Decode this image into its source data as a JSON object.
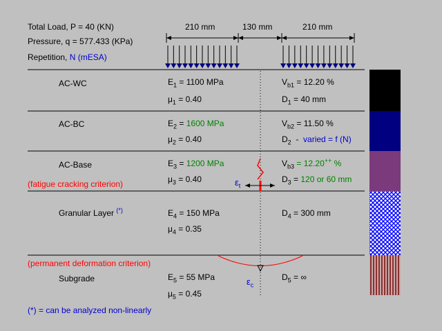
{
  "header": {
    "total_load": "Total Load, P = 40 (KN)",
    "pressure": "Pressure, q = 577.433 (KPa)",
    "repetition_prefix": "Repetition, ",
    "repetition_value": "N (mESA)"
  },
  "dimensions": {
    "left_width": "210 mm",
    "gap": "130 mm",
    "right_width": "210 mm"
  },
  "criteria": {
    "fatigue": "(fatigue cracking criterion)",
    "permanent": "(permanent deformation criterion)"
  },
  "strains": {
    "tensile": {
      "symbol": "ε",
      "sub": "t"
    },
    "compressive": {
      "symbol": "ε",
      "sub": "c"
    }
  },
  "layers": [
    {
      "name": "AC-WC",
      "color": "#000000",
      "modulus": {
        "pre": "E",
        "sub": "1",
        "mid": " = ",
        "value": "1100 MPa",
        "value_color": "black"
      },
      "poisson": {
        "pre": "μ",
        "sub": "1",
        "value": " = 0.40"
      },
      "volume": {
        "pre": "V",
        "sub": "b1",
        "value": " = 12.20 %",
        "sup": ""
      },
      "thickness": {
        "pre": "D",
        "sub": "1",
        "value": " = 40 mm",
        "note": ""
      }
    },
    {
      "name": "AC-BC",
      "color": "#000080",
      "modulus": {
        "pre": "E",
        "sub": "2",
        "mid": " = ",
        "value": "1600 MPa",
        "value_color": "green"
      },
      "poisson": {
        "pre": "μ",
        "sub": "2",
        "value": " = 0.40"
      },
      "volume": {
        "pre": "V",
        "sub": "b2",
        "value": " = 11.50 %",
        "sup": ""
      },
      "thickness": {
        "pre": "D",
        "sub": "2",
        "value": "  -  ",
        "note": "varied = f (N)"
      }
    },
    {
      "name": "AC-Base",
      "color": "#7b3a7b",
      "modulus": {
        "pre": "E",
        "sub": "3",
        "mid": " = ",
        "value": "1200 MPa",
        "value_color": "green"
      },
      "poisson": {
        "pre": "μ",
        "sub": "3",
        "value": " = 0.40"
      },
      "volume": {
        "pre": "V",
        "sub": "b3",
        "value": " = 12.20",
        "sup": "++",
        "tail": " %"
      },
      "thickness": {
        "pre": "D",
        "sub": "3",
        "value": " = ",
        "note": "120 or 60 mm"
      }
    },
    {
      "name": "Granular Layer",
      "name_sup": "(*)",
      "color": "#0000ff",
      "modulus": {
        "pre": "E",
        "sub": "4",
        "mid": " = ",
        "value": "150 MPa",
        "value_color": "black"
      },
      "poisson": {
        "pre": "μ",
        "sub": "4",
        "value": " = 0.35"
      },
      "volume": null,
      "thickness": {
        "pre": "D",
        "sub": "4",
        "value": " = 300 mm",
        "note": ""
      }
    },
    {
      "name": "Subgrade",
      "color": "#8b3030",
      "modulus": {
        "pre": "E",
        "sub": "5",
        "mid": " = ",
        "value": "55 MPa",
        "value_color": "black"
      },
      "poisson": {
        "pre": "μ",
        "sub": "5",
        "value": " = 0.45"
      },
      "volume": null,
      "thickness": {
        "pre": "D",
        "sub": "5",
        "value": " = ∞",
        "note": ""
      }
    }
  ],
  "footnote": "(*) = can be analyzed non-linearly",
  "colors": {
    "background": "#c0c0c0",
    "arrows": "#000080",
    "criterion": "#ff0000",
    "note": "#0000cc",
    "green": "#008000"
  }
}
